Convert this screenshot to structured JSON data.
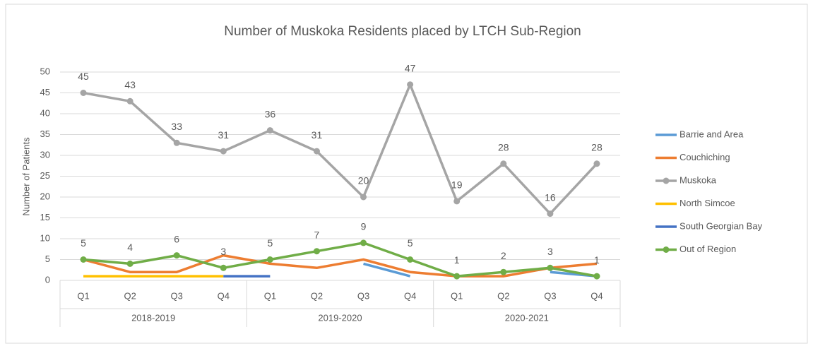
{
  "chart_data": {
    "type": "line",
    "title": "Number of Muskoka Residents placed by LTCH Sub-Region",
    "y_label": "Number of Patients",
    "categories": [
      "Q1",
      "Q2",
      "Q3",
      "Q4",
      "Q1",
      "Q2",
      "Q3",
      "Q4",
      "Q1",
      "Q2",
      "Q3",
      "Q4"
    ],
    "category_groups": [
      "2018-2019",
      "2019-2020",
      "2020-2021"
    ],
    "ylim": [
      0,
      50
    ],
    "yticks": [
      0,
      5,
      10,
      15,
      20,
      25,
      30,
      35,
      40,
      45,
      50
    ],
    "grid": true,
    "legend": "right",
    "series": [
      {
        "name": "Barrie and Area",
        "color": "#5b9bd5",
        "values": [
          null,
          null,
          null,
          null,
          null,
          null,
          4,
          1,
          null,
          null,
          2,
          1
        ]
      },
      {
        "name": "Couchiching",
        "color": "#ed7d31",
        "values": [
          5,
          2,
          2,
          6,
          4,
          3,
          5,
          2,
          1,
          1,
          3,
          4
        ]
      },
      {
        "name": "Muskoka",
        "color": "#a5a5a5",
        "values": [
          45,
          43,
          33,
          31,
          36,
          31,
          20,
          47,
          19,
          28,
          16,
          28
        ],
        "data_labels": true
      },
      {
        "name": "North Simcoe",
        "color": "#ffc000",
        "values": [
          1,
          1,
          1,
          1,
          null,
          null,
          null,
          null,
          null,
          null,
          null,
          null
        ]
      },
      {
        "name": "South Georgian Bay",
        "color": "#4472c4",
        "values": [
          null,
          null,
          null,
          1,
          1,
          null,
          null,
          null,
          null,
          null,
          null,
          null
        ]
      },
      {
        "name": "Out of Region",
        "color": "#70ad47",
        "values": [
          5,
          4,
          6,
          3,
          5,
          7,
          9,
          5,
          1,
          2,
          3,
          1
        ],
        "data_labels": true
      }
    ]
  }
}
